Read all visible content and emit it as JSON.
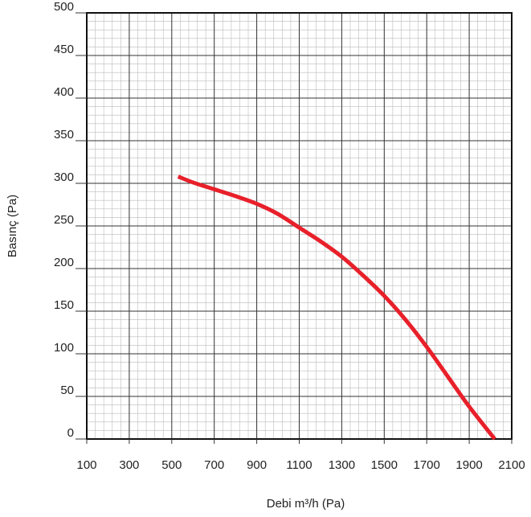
{
  "chart_data": {
    "type": "line",
    "title": "",
    "xlabel": "Debi m³/h (Pa)",
    "ylabel": "Basınç (Pa)",
    "xlim": [
      100,
      2100
    ],
    "ylim": [
      0,
      500
    ],
    "x_ticks": [
      100,
      300,
      500,
      700,
      900,
      1100,
      1300,
      1500,
      1700,
      1900,
      2100
    ],
    "y_ticks": [
      0,
      50,
      100,
      150,
      200,
      250,
      300,
      350,
      400,
      450,
      500
    ],
    "x_tick_labels": [
      "100",
      "300",
      "500",
      "700",
      "900",
      "1100",
      "1300",
      "1500",
      "1700",
      "1900",
      "2100"
    ],
    "y_tick_labels": [
      "0",
      "50",
      "100",
      "150",
      "200",
      "250",
      "300",
      "350",
      "400",
      "450",
      "500"
    ],
    "grid": true,
    "minor_grid": true,
    "colors": {
      "line": "#e8202a",
      "major_grid": "#333333",
      "minor_grid": "#bbbbbb",
      "frame": "#111111"
    },
    "series": [
      {
        "x": [
          530,
          600,
          700,
          800,
          900,
          1000,
          1100,
          1200,
          1300,
          1400,
          1500,
          1600,
          1700,
          1800,
          1900,
          2020
        ],
        "y": [
          308,
          301,
          293,
          285,
          276,
          264,
          248,
          232,
          214,
          192,
          168,
          140,
          108,
          73,
          38,
          0
        ]
      }
    ]
  }
}
